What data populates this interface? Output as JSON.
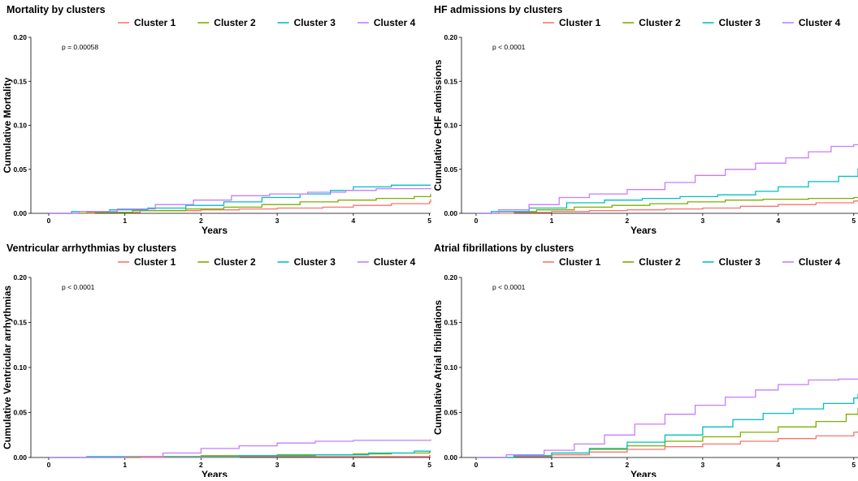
{
  "colors": {
    "Cluster 1": "#F8766D",
    "Cluster 2": "#7CAE00",
    "Cluster 3": "#00BFC4",
    "Cluster 4": "#C77CFF"
  },
  "chart_data": [
    {
      "type": "line",
      "step": true,
      "title": "Mortality by clusters",
      "xlabel": "Years",
      "ylabel": "Cumulative Mortality",
      "pvalue": "p = 0.00058",
      "xlim": [
        0,
        5.25
      ],
      "ylim": [
        0,
        0.2
      ],
      "xticks": [
        0,
        1,
        2,
        3,
        4,
        5
      ],
      "yticks": [
        0.0,
        0.05,
        0.1,
        0.15,
        0.2
      ],
      "legend": [
        "Cluster 1",
        "Cluster 2",
        "Cluster 3",
        "Cluster 4"
      ],
      "series": [
        {
          "name": "Cluster 1",
          "points": [
            [
              0,
              0
            ],
            [
              0.6,
              0.001
            ],
            [
              1.2,
              0.003
            ],
            [
              2,
              0.004
            ],
            [
              2.5,
              0.005
            ],
            [
              3,
              0.006
            ],
            [
              3.6,
              0.007
            ],
            [
              4,
              0.009
            ],
            [
              4.5,
              0.011
            ],
            [
              5,
              0.013
            ],
            [
              5.15,
              0.016
            ],
            [
              5.25,
              0.016
            ]
          ]
        },
        {
          "name": "Cluster 2",
          "points": [
            [
              0,
              0
            ],
            [
              0.5,
              0.001
            ],
            [
              1.1,
              0.003
            ],
            [
              1.8,
              0.005
            ],
            [
              2.3,
              0.007
            ],
            [
              2.8,
              0.01
            ],
            [
              3.3,
              0.013
            ],
            [
              3.8,
              0.015
            ],
            [
              4.3,
              0.017
            ],
            [
              4.8,
              0.019
            ],
            [
              5.1,
              0.022
            ],
            [
              5.25,
              0.022
            ]
          ]
        },
        {
          "name": "Cluster 3",
          "points": [
            [
              0,
              0
            ],
            [
              0.3,
              0.002
            ],
            [
              0.8,
              0.004
            ],
            [
              1.3,
              0.006
            ],
            [
              1.8,
              0.009
            ],
            [
              2.3,
              0.013
            ],
            [
              2.8,
              0.018
            ],
            [
              3.3,
              0.022
            ],
            [
              3.7,
              0.026
            ],
            [
              4,
              0.03
            ],
            [
              4.5,
              0.032
            ],
            [
              5.25,
              0.032
            ]
          ]
        },
        {
          "name": "Cluster 4",
          "points": [
            [
              0,
              0
            ],
            [
              0.4,
              0.002
            ],
            [
              0.9,
              0.005
            ],
            [
              1.4,
              0.01
            ],
            [
              1.9,
              0.015
            ],
            [
              2.4,
              0.02
            ],
            [
              2.9,
              0.022
            ],
            [
              3.4,
              0.024
            ],
            [
              3.9,
              0.026
            ],
            [
              4.3,
              0.028
            ],
            [
              5.25,
              0.029
            ]
          ]
        }
      ]
    },
    {
      "type": "line",
      "step": true,
      "title": "HF admissions by clusters",
      "xlabel": "Years",
      "ylabel": "Cumulative CHF admissions",
      "pvalue": "p < 0.0001",
      "xlim": [
        0,
        5.25
      ],
      "ylim": [
        0,
        0.2
      ],
      "xticks": [
        0,
        1,
        2,
        3,
        4,
        5
      ],
      "yticks": [
        0.0,
        0.05,
        0.1,
        0.15,
        0.2
      ],
      "legend": [
        "Cluster 1",
        "Cluster 2",
        "Cluster 3",
        "Cluster 4"
      ],
      "series": [
        {
          "name": "Cluster 1",
          "points": [
            [
              0,
              0
            ],
            [
              0.5,
              0.001
            ],
            [
              1,
              0.002
            ],
            [
              1.5,
              0.003
            ],
            [
              2,
              0.004
            ],
            [
              2.5,
              0.005
            ],
            [
              3,
              0.006
            ],
            [
              3.5,
              0.008
            ],
            [
              4,
              0.01
            ],
            [
              4.5,
              0.012
            ],
            [
              5,
              0.014
            ],
            [
              5.25,
              0.015
            ]
          ]
        },
        {
          "name": "Cluster 2",
          "points": [
            [
              0,
              0
            ],
            [
              0.3,
              0.002
            ],
            [
              0.8,
              0.004
            ],
            [
              1.3,
              0.007
            ],
            [
              1.8,
              0.009
            ],
            [
              2.3,
              0.011
            ],
            [
              2.8,
              0.013
            ],
            [
              3.3,
              0.015
            ],
            [
              3.8,
              0.016
            ],
            [
              4.4,
              0.017
            ],
            [
              5,
              0.018
            ],
            [
              5.25,
              0.018
            ]
          ]
        },
        {
          "name": "Cluster 3",
          "points": [
            [
              0,
              0
            ],
            [
              0.2,
              0.002
            ],
            [
              0.7,
              0.006
            ],
            [
              1.2,
              0.012
            ],
            [
              1.7,
              0.015
            ],
            [
              2.2,
              0.017
            ],
            [
              2.7,
              0.019
            ],
            [
              3.2,
              0.021
            ],
            [
              3.7,
              0.025
            ],
            [
              4,
              0.03
            ],
            [
              4.4,
              0.036
            ],
            [
              4.8,
              0.042
            ],
            [
              5.1,
              0.048
            ],
            [
              5.25,
              0.051
            ]
          ]
        },
        {
          "name": "Cluster 4",
          "points": [
            [
              0,
              0
            ],
            [
              0.3,
              0.004
            ],
            [
              0.7,
              0.01
            ],
            [
              1.1,
              0.018
            ],
            [
              1.5,
              0.022
            ],
            [
              2,
              0.027
            ],
            [
              2.5,
              0.035
            ],
            [
              2.9,
              0.043
            ],
            [
              3.3,
              0.05
            ],
            [
              3.7,
              0.057
            ],
            [
              4.1,
              0.063
            ],
            [
              4.4,
              0.07
            ],
            [
              4.7,
              0.076
            ],
            [
              5,
              0.078
            ],
            [
              5.25,
              0.078
            ]
          ]
        }
      ]
    },
    {
      "type": "line",
      "step": true,
      "title": "Ventricular arrhythmias by clusters",
      "xlabel": "Years",
      "ylabel": "Cumulative Ventricular arrhythmias",
      "pvalue": "p < 0.0001",
      "xlim": [
        0,
        5.25
      ],
      "ylim": [
        0,
        0.2
      ],
      "xticks": [
        0,
        1,
        2,
        3,
        4,
        5
      ],
      "yticks": [
        0.0,
        0.05,
        0.1,
        0.15,
        0.2
      ],
      "legend": [
        "Cluster 1",
        "Cluster 2",
        "Cluster 3",
        "Cluster 4"
      ],
      "series": [
        {
          "name": "Cluster 1",
          "points": [
            [
              0,
              0
            ],
            [
              1.5,
              0.0
            ],
            [
              2.5,
              0.001
            ],
            [
              3.5,
              0.001
            ],
            [
              4.5,
              0.001
            ],
            [
              5,
              0.002
            ],
            [
              5.25,
              0.002
            ]
          ]
        },
        {
          "name": "Cluster 2",
          "points": [
            [
              0,
              0
            ],
            [
              1.2,
              0.001
            ],
            [
              2,
              0.002
            ],
            [
              3,
              0.003
            ],
            [
              4,
              0.004
            ],
            [
              4.5,
              0.005
            ],
            [
              5,
              0.006
            ],
            [
              5.25,
              0.006
            ]
          ]
        },
        {
          "name": "Cluster 3",
          "points": [
            [
              0,
              0
            ],
            [
              0.5,
              0.001
            ],
            [
              1.5,
              0.001
            ],
            [
              2.5,
              0.002
            ],
            [
              3.5,
              0.003
            ],
            [
              4.2,
              0.005
            ],
            [
              4.8,
              0.007
            ],
            [
              5.25,
              0.007
            ]
          ]
        },
        {
          "name": "Cluster 4",
          "points": [
            [
              0,
              0
            ],
            [
              1,
              0.001
            ],
            [
              1.5,
              0.005
            ],
            [
              2,
              0.01
            ],
            [
              2.5,
              0.013
            ],
            [
              3,
              0.016
            ],
            [
              3.5,
              0.018
            ],
            [
              4,
              0.019
            ],
            [
              5.25,
              0.02
            ]
          ]
        }
      ]
    },
    {
      "type": "line",
      "step": true,
      "title": "Atrial fibrillations by clusters",
      "xlabel": "Years",
      "ylabel": "Cumulative Atrial fibrillations",
      "pvalue": "p < 0.0001",
      "xlim": [
        0,
        5.25
      ],
      "ylim": [
        0,
        0.2
      ],
      "xticks": [
        0,
        1,
        2,
        3,
        4,
        5
      ],
      "yticks": [
        0.0,
        0.05,
        0.1,
        0.15,
        0.2
      ],
      "legend": [
        "Cluster 1",
        "Cluster 2",
        "Cluster 3",
        "Cluster 4"
      ],
      "series": [
        {
          "name": "Cluster 1",
          "points": [
            [
              0,
              0
            ],
            [
              0.5,
              0.001
            ],
            [
              1,
              0.003
            ],
            [
              1.5,
              0.006
            ],
            [
              2,
              0.009
            ],
            [
              2.5,
              0.012
            ],
            [
              3,
              0.015
            ],
            [
              3.5,
              0.018
            ],
            [
              4,
              0.021
            ],
            [
              4.5,
              0.024
            ],
            [
              5,
              0.028
            ],
            [
              5.25,
              0.029
            ]
          ]
        },
        {
          "name": "Cluster 2",
          "points": [
            [
              0,
              0
            ],
            [
              0.5,
              0.002
            ],
            [
              1,
              0.005
            ],
            [
              1.5,
              0.009
            ],
            [
              2,
              0.013
            ],
            [
              2.5,
              0.018
            ],
            [
              3,
              0.023
            ],
            [
              3.5,
              0.028
            ],
            [
              4,
              0.034
            ],
            [
              4.5,
              0.04
            ],
            [
              4.9,
              0.048
            ],
            [
              5.1,
              0.053
            ],
            [
              5.25,
              0.055
            ]
          ]
        },
        {
          "name": "Cluster 3",
          "points": [
            [
              0,
              0
            ],
            [
              0.5,
              0.002
            ],
            [
              1,
              0.005
            ],
            [
              1.5,
              0.01
            ],
            [
              2,
              0.017
            ],
            [
              2.5,
              0.025
            ],
            [
              3,
              0.034
            ],
            [
              3.4,
              0.042
            ],
            [
              3.8,
              0.049
            ],
            [
              4.2,
              0.054
            ],
            [
              4.6,
              0.06
            ],
            [
              5,
              0.066
            ],
            [
              5.2,
              0.071
            ],
            [
              5.25,
              0.071
            ]
          ]
        },
        {
          "name": "Cluster 4",
          "points": [
            [
              0,
              0
            ],
            [
              0.4,
              0.003
            ],
            [
              0.9,
              0.008
            ],
            [
              1.3,
              0.015
            ],
            [
              1.7,
              0.025
            ],
            [
              2.1,
              0.037
            ],
            [
              2.5,
              0.048
            ],
            [
              2.9,
              0.058
            ],
            [
              3.3,
              0.067
            ],
            [
              3.7,
              0.075
            ],
            [
              4,
              0.081
            ],
            [
              4.4,
              0.086
            ],
            [
              4.8,
              0.087
            ],
            [
              5.25,
              0.087
            ]
          ]
        }
      ]
    }
  ]
}
